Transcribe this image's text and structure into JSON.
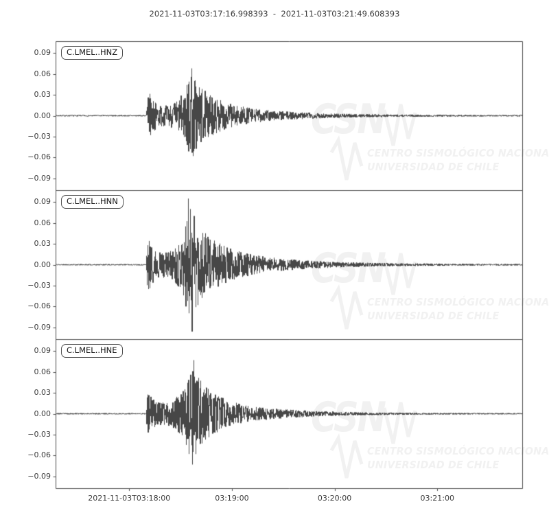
{
  "title": "2021-11-03T03:17:16.998393  -  2021-11-03T03:21:49.608393",
  "colors": {
    "background": "#ffffff",
    "trace": "#474747",
    "frame": "#4d4d4d",
    "tick_label": "#3a3a3a",
    "watermark": "#f1f1f1"
  },
  "watermark": {
    "brand": "CSN",
    "line1": "CENTRO SISMOLÓGICO NACIONAL",
    "line2": "UNIVERSIDAD DE CHILE"
  },
  "chart_data": {
    "type": "line",
    "kind": "seismogram-min-max",
    "title": "2021-11-03T03:17:16.998393  -  2021-11-03T03:21:49.608393",
    "start_time": "2021-11-03T03:17:16.998393",
    "end_time": "2021-11-03T03:21:49.608393",
    "duration_s": 272.61,
    "xlabel": "",
    "ylabel": "",
    "grid": false,
    "ylim": [
      -0.107,
      0.107
    ],
    "y_ticks": [
      0.09,
      0.06,
      0.03,
      0.0,
      -0.03,
      -0.06,
      -0.09
    ],
    "x_ticks": [
      {
        "t": 43.001607,
        "label": "2021-11-03T03:18:00"
      },
      {
        "t": 103.001607,
        "label": "03:19:00"
      },
      {
        "t": 163.001607,
        "label": "03:20:00"
      },
      {
        "t": 223.001607,
        "label": "03:21:00"
      }
    ],
    "traces": [
      {
        "id": "C.LMEL..HNZ",
        "seed": 7,
        "peak_positive": 0.068,
        "peak_negative": -0.058,
        "envelope": [
          [
            0,
            0.0008
          ],
          [
            52.8,
            0.0008
          ],
          [
            53.6,
            0.03
          ],
          [
            55.5,
            0.024
          ],
          [
            59,
            0.013
          ],
          [
            65,
            0.012
          ],
          [
            71,
            0.018
          ],
          [
            75,
            0.028
          ],
          [
            78,
            0.046
          ],
          [
            79.5,
            0.052
          ],
          [
            81,
            0.046
          ],
          [
            84,
            0.036
          ],
          [
            88,
            0.027
          ],
          [
            94,
            0.02
          ],
          [
            103,
            0.013
          ],
          [
            115,
            0.0085
          ],
          [
            130,
            0.0055
          ],
          [
            150,
            0.0035
          ],
          [
            175,
            0.002
          ],
          [
            205,
            0.0013
          ],
          [
            240,
            0.001
          ],
          [
            272.6,
            0.0009
          ]
        ],
        "spikes": [
          [
            79.4,
            0.068
          ],
          [
            80.2,
            -0.058
          ],
          [
            77.9,
            0.049
          ],
          [
            76.8,
            -0.042
          ],
          [
            54.0,
            -0.033
          ],
          [
            53.8,
            0.026
          ]
        ]
      },
      {
        "id": "C.LMEL..HNN",
        "seed": 11,
        "peak_positive": 0.095,
        "peak_negative": -0.096,
        "envelope": [
          [
            0,
            0.0008
          ],
          [
            52.8,
            0.0008
          ],
          [
            53.6,
            0.033
          ],
          [
            55.5,
            0.026
          ],
          [
            59,
            0.015
          ],
          [
            65,
            0.015
          ],
          [
            70,
            0.021
          ],
          [
            74,
            0.032
          ],
          [
            76.5,
            0.052
          ],
          [
            78.5,
            0.062
          ],
          [
            81,
            0.052
          ],
          [
            85,
            0.042
          ],
          [
            90,
            0.031
          ],
          [
            97,
            0.023
          ],
          [
            106,
            0.016
          ],
          [
            117,
            0.011
          ],
          [
            130,
            0.0075
          ],
          [
            146,
            0.005
          ],
          [
            165,
            0.0032
          ],
          [
            190,
            0.002
          ],
          [
            225,
            0.0013
          ],
          [
            272.6,
            0.001
          ]
        ],
        "spikes": [
          [
            77.5,
            0.095
          ],
          [
            79.7,
            -0.096
          ],
          [
            78.6,
            0.08
          ],
          [
            76.1,
            -0.06
          ],
          [
            80.9,
            0.07
          ],
          [
            54.1,
            -0.035
          ],
          [
            53.9,
            0.028
          ]
        ]
      },
      {
        "id": "C.LMEL..HNE",
        "seed": 23,
        "peak_positive": 0.077,
        "peak_negative": -0.073,
        "envelope": [
          [
            0,
            0.0008
          ],
          [
            52.8,
            0.0008
          ],
          [
            53.6,
            0.026
          ],
          [
            55.5,
            0.021
          ],
          [
            59,
            0.013
          ],
          [
            65,
            0.013
          ],
          [
            71,
            0.02
          ],
          [
            75,
            0.03
          ],
          [
            78,
            0.047
          ],
          [
            80.5,
            0.05
          ],
          [
            83,
            0.043
          ],
          [
            87,
            0.033
          ],
          [
            92,
            0.024
          ],
          [
            99,
            0.017
          ],
          [
            108,
            0.011
          ],
          [
            120,
            0.0075
          ],
          [
            135,
            0.005
          ],
          [
            152,
            0.0032
          ],
          [
            175,
            0.0019
          ],
          [
            205,
            0.0012
          ],
          [
            240,
            0.0009
          ],
          [
            272.6,
            0.0008
          ]
        ],
        "spikes": [
          [
            80.7,
            0.077
          ],
          [
            79.8,
            -0.073
          ],
          [
            78.8,
            0.056
          ],
          [
            81.8,
            -0.058
          ],
          [
            54.0,
            -0.027
          ]
        ]
      }
    ]
  }
}
